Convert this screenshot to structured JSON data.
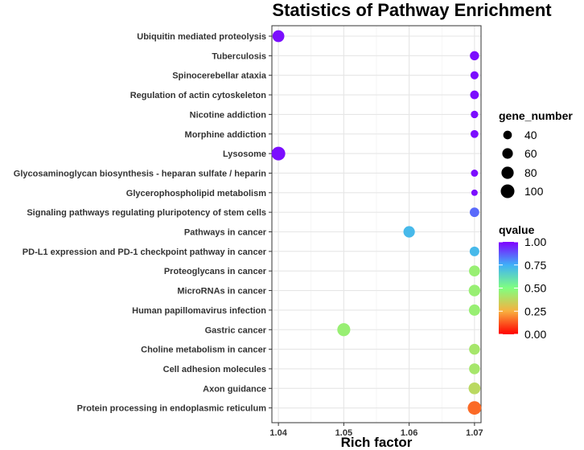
{
  "chart_data": {
    "type": "scatter",
    "title": "Statistics of Pathway Enrichment",
    "xlabel": "Rich factor",
    "ylabel": "",
    "xlim": [
      1.039,
      1.071
    ],
    "xticks": [
      "1.04",
      "1.05",
      "1.06",
      "1.07"
    ],
    "xtick_values": [
      1.04,
      1.05,
      1.06,
      1.07
    ],
    "categories": [
      "Ubiquitin mediated proteolysis",
      "Tuberculosis",
      "Spinocerebellar ataxia",
      "Regulation of actin cytoskeleton",
      "Nicotine addiction",
      "Morphine addiction",
      "Lysosome",
      "Glycosaminoglycan biosynthesis - heparan sulfate / heparin",
      "Glycerophospholipid metabolism",
      "Signaling pathways regulating pluripotency of stem cells",
      "Pathways in cancer",
      "PD-L1 expression and PD-1 checkpoint pathway in cancer",
      "Proteoglycans in cancer",
      "MicroRNAs in cancer",
      "Human papillomavirus infection",
      "Gastric cancer",
      "Choline metabolism in cancer",
      "Cell adhesion molecules",
      "Axon guidance",
      "Protein processing in endoplasmic reticulum"
    ],
    "points": [
      {
        "pathway": "Ubiquitin mediated proteolysis",
        "rich_factor": 1.04,
        "gene_number": 75,
        "qvalue": 0.98
      },
      {
        "pathway": "Tuberculosis",
        "rich_factor": 1.07,
        "gene_number": 45,
        "qvalue": 0.98
      },
      {
        "pathway": "Spinocerebellar ataxia",
        "rich_factor": 1.07,
        "gene_number": 35,
        "qvalue": 0.98
      },
      {
        "pathway": "Regulation of actin cytoskeleton",
        "rich_factor": 1.07,
        "gene_number": 40,
        "qvalue": 0.98
      },
      {
        "pathway": "Nicotine addiction",
        "rich_factor": 1.07,
        "gene_number": 30,
        "qvalue": 0.98
      },
      {
        "pathway": "Morphine addiction",
        "rich_factor": 1.07,
        "gene_number": 33,
        "qvalue": 0.98
      },
      {
        "pathway": "Lysosome",
        "rich_factor": 1.04,
        "gene_number": 100,
        "qvalue": 0.98
      },
      {
        "pathway": "Glycosaminoglycan biosynthesis - heparan sulfate / heparin",
        "rich_factor": 1.07,
        "gene_number": 27,
        "qvalue": 0.98
      },
      {
        "pathway": "Glycerophospholipid metabolism",
        "rich_factor": 1.07,
        "gene_number": 22,
        "qvalue": 0.98
      },
      {
        "pathway": "Signaling pathways regulating pluripotency of stem cells",
        "rich_factor": 1.07,
        "gene_number": 48,
        "qvalue": 0.85
      },
      {
        "pathway": "Pathways in cancer",
        "rich_factor": 1.06,
        "gene_number": 70,
        "qvalue": 0.72
      },
      {
        "pathway": "PD-L1 expression and PD-1 checkpoint pathway in cancer",
        "rich_factor": 1.07,
        "gene_number": 50,
        "qvalue": 0.72
      },
      {
        "pathway": "Proteoglycans in cancer",
        "rich_factor": 1.07,
        "gene_number": 65,
        "qvalue": 0.45
      },
      {
        "pathway": "MicroRNAs in cancer",
        "rich_factor": 1.07,
        "gene_number": 72,
        "qvalue": 0.45
      },
      {
        "pathway": "Human papillomavirus infection",
        "rich_factor": 1.07,
        "gene_number": 68,
        "qvalue": 0.45
      },
      {
        "pathway": "Gastric cancer",
        "rich_factor": 1.05,
        "gene_number": 90,
        "qvalue": 0.45
      },
      {
        "pathway": "Choline metabolism in cancer",
        "rich_factor": 1.07,
        "gene_number": 63,
        "qvalue": 0.42
      },
      {
        "pathway": "Cell adhesion molecules",
        "rich_factor": 1.07,
        "gene_number": 63,
        "qvalue": 0.42
      },
      {
        "pathway": "Axon guidance",
        "rich_factor": 1.07,
        "gene_number": 75,
        "qvalue": 0.38
      },
      {
        "pathway": "Protein processing in endoplasmic reticulum",
        "rich_factor": 1.07,
        "gene_number": 98,
        "qvalue": 0.15
      }
    ],
    "size_legend": {
      "title": "gene_number",
      "values": [
        40,
        60,
        80,
        100
      ],
      "labels": [
        "40",
        "60",
        "80",
        "100"
      ]
    },
    "color_legend": {
      "title": "qvalue",
      "ticks": [
        1.0,
        0.75,
        0.5,
        0.25,
        0.0
      ],
      "labels": [
        "1.00",
        "0.75",
        "0.50",
        "0.25",
        "0.00"
      ]
    },
    "grid": true,
    "legend_position": "right"
  }
}
